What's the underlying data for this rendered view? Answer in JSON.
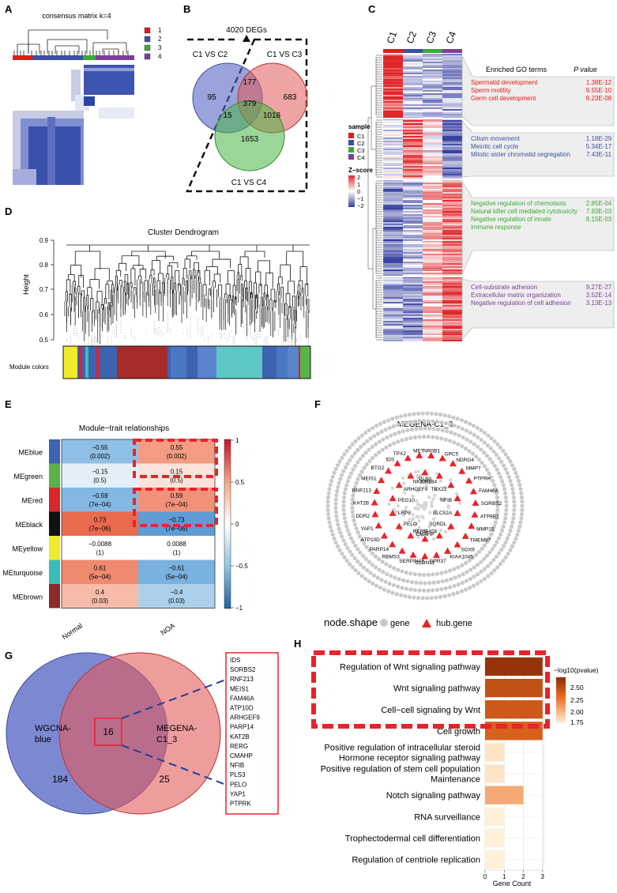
{
  "panels": {
    "A": "A",
    "B": "B",
    "C": "C",
    "D": "D",
    "E": "E",
    "F": "F",
    "G": "G",
    "H": "H"
  },
  "panelA": {
    "title": "consensus matrix k=4",
    "legend": [
      "1",
      "2",
      "3",
      "4"
    ]
  },
  "colors": {
    "c1": "#e31a1c",
    "c2": "#3c4fa3",
    "c3": "#3aaa35",
    "c4": "#7b3f99",
    "red_box": "#e8232a"
  },
  "panelB": {
    "top_label": "4020 DEGs",
    "set_labels": [
      "C1 VS C2",
      "C1 VS C3",
      "C1 VS C4"
    ],
    "regions": {
      "only_c2": "95",
      "c2_c3": "177",
      "only_c3": "683",
      "all": "379",
      "c2_c4": "15",
      "c3_c4": "1018",
      "only_c4": "1653"
    }
  },
  "panelC": {
    "columns": [
      "C1",
      "C2",
      "C3",
      "C4"
    ],
    "header": "Enriched GO terms",
    "pval_header": "P value",
    "legend_sample_title": "sample",
    "legend_samples": [
      "C1",
      "C2",
      "C3",
      "C4"
    ],
    "legend_z_title": "Z−score",
    "legend_z_ticks": [
      "2",
      "1",
      "0",
      "−1",
      "−2"
    ],
    "groups": [
      {
        "color": "#e31a1c",
        "terms": [
          {
            "term": "Spermatid development",
            "p": "1.38E-12"
          },
          {
            "term": "Sperm motility",
            "p": "9.55E-10"
          },
          {
            "term": "Germ cell development",
            "p": "9.23E-08"
          }
        ]
      },
      {
        "color": "#3c4fa3",
        "terms": [
          {
            "term": "Cilium movement",
            "p": "1.18E-29"
          },
          {
            "term": "Meiotic cell cycle",
            "p": "5.34E-17"
          },
          {
            "term": "Mitotic sister chromatid segregation",
            "p": "7.43E-11"
          }
        ]
      },
      {
        "color": "#3aaa35",
        "terms": [
          {
            "term": "Negative regulation of chemotaxis",
            "p": "2.85E-04"
          },
          {
            "term": "Natural killer cell mediated cytotoxicity",
            "p": "7.93E-03"
          },
          {
            "term": "Negative regulation of innate",
            "p": "8.15E-03"
          },
          {
            "term": "immune response",
            "p": ""
          }
        ]
      },
      {
        "color": "#7b3f99",
        "terms": [
          {
            "term": "Cell-substrate adhesion",
            "p": "9.27E-27"
          },
          {
            "term": "Extracellular matrix organization",
            "p": "3.52E-14"
          },
          {
            "term": "Negative regulation of cell adhesion",
            "p": "3.13E-13"
          }
        ]
      }
    ]
  },
  "panelD": {
    "title": "Cluster Dendrogram",
    "ylabel": "Height",
    "yticks": [
      "0.9",
      "0.8",
      "0.7",
      "0.6",
      "0.5"
    ],
    "module_label": "Module colors"
  },
  "panelE": {
    "title": "Module−trait relationships",
    "columns": [
      "Normal",
      "NOA"
    ],
    "scale_ticks": [
      "1",
      "0.5",
      "0",
      "−0.5",
      "−1"
    ],
    "rows": [
      {
        "name": "MEblue",
        "swatch": "#3e63b0",
        "cells": [
          {
            "v": "−0.55",
            "p": "(0.002)",
            "c": "#8fbfe5"
          },
          {
            "v": "0.55",
            "p": "(0.002)",
            "c": "#f39c82"
          }
        ]
      },
      {
        "name": "MEgreen",
        "swatch": "#5ab34a",
        "cells": [
          {
            "v": "−0.15",
            "p": "(0.5)",
            "c": "#e3eff8"
          },
          {
            "v": "0.15",
            "p": "(0.5)",
            "c": "#fbe3dc"
          }
        ]
      },
      {
        "name": "MEred",
        "swatch": "#d8262c",
        "cells": [
          {
            "v": "−0.59",
            "p": "(7e−04)",
            "c": "#84b7e1"
          },
          {
            "v": "0.59",
            "p": "(7e−04)",
            "c": "#f1917a"
          }
        ]
      },
      {
        "name": "MEblack",
        "swatch": "#111111",
        "cells": [
          {
            "v": "0.73",
            "p": "(7e−06)",
            "c": "#ea6a4d"
          },
          {
            "v": "−0.73",
            "p": "(7e−06)",
            "c": "#5f9bd5"
          }
        ]
      },
      {
        "name": "MEyellow",
        "swatch": "#f2ea2c",
        "cells": [
          {
            "v": "−0.0088",
            "p": "(1)",
            "c": "#ffffff"
          },
          {
            "v": "0.0088",
            "p": "(1)",
            "c": "#ffffff"
          }
        ]
      },
      {
        "name": "MEturquoise",
        "swatch": "#3bbcb8",
        "cells": [
          {
            "v": "0.61",
            "p": "(5e−04)",
            "c": "#ef8a70"
          },
          {
            "v": "−0.61",
            "p": "(5e−04)",
            "c": "#7ab1df"
          }
        ]
      },
      {
        "name": "MEbrown",
        "swatch": "#8b2a2a",
        "cells": [
          {
            "v": "0.4",
            "p": "(0.03)",
            "c": "#f6bca9"
          },
          {
            "v": "−0.4",
            "p": "(0.03)",
            "c": "#acd0ec"
          }
        ]
      }
    ]
  },
  "panelF": {
    "title": "MEGENA-C1_3",
    "legend_title": "node.shape",
    "legend_gene": "gene",
    "legend_hub": "hub.gene",
    "hubs": [
      "NR0B1",
      "GPC5",
      "NDRG4",
      "MMP7",
      "PTPRK",
      "FAM46A",
      "SORBS2",
      "ATP8B1",
      "MMP15",
      "TMEM97",
      "SOX9",
      "KIAA1045",
      "GPR37",
      "CLDN11",
      "SERPINA5",
      "RBMS3",
      "PARP14",
      "ATP10D",
      "YAP1",
      "DDR2",
      "KAT2B",
      "RNF213",
      "MEIS1",
      "BTG2",
      "IDS",
      "TPX2",
      "MET"
    ],
    "inner": [
      "PLS3",
      "ERBB4",
      "TBX22",
      "NFIB",
      "SLC52A",
      "SQRDL",
      "SHC4",
      "CMAHP",
      "RERG",
      "PELO",
      "LRP8",
      "PEG10",
      "ARHGEF9",
      "NKX3-1"
    ]
  },
  "panelG": {
    "left_label": [
      "WGCNA-",
      "blue"
    ],
    "right_label": [
      "MEGENA-",
      "C1_3"
    ],
    "left_only": "184",
    "overlap": "16",
    "right_only": "25",
    "genes": [
      "IDS",
      "SORBS2",
      "RNF213",
      "MEIS1",
      "FAM46A",
      "ATP10D",
      "ARHGEF9",
      "PARP14",
      "KAT2B",
      "RERG",
      "CMAHP",
      "NFIB",
      "PLS3",
      "PELO",
      "YAP1",
      "PTPRK"
    ]
  },
  "chart_data": {
    "type": "bar",
    "orientation": "horizontal",
    "categories": [
      "Regulation of Wnt signaling pathway",
      "Wnt signaling pathway",
      "Cell−cell signaling by Wnt",
      "Cell growth",
      "Positive regulation of intracellular steroid Hormone receptor signaling pathway",
      "Positive regulation of stem cell population Maintenance",
      "Notch signaling pathway",
      "RNA surveillance",
      "Trophectodermal cell differentiation",
      "Regulation of centriole replication"
    ],
    "category_lines": [
      [
        "Regulation of Wnt signaling pathway"
      ],
      [
        "Wnt signaling pathway"
      ],
      [
        "Cell−cell signaling by Wnt"
      ],
      [
        "Cell growth"
      ],
      [
        "Positive regulation of intracellular steroid",
        "Hormone receptor signaling pathway"
      ],
      [
        "Positive regulation of stem cell population",
        "Maintenance"
      ],
      [
        "Notch signaling pathway"
      ],
      [
        "RNA surveillance"
      ],
      [
        "Trophectodermal cell differentiation"
      ],
      [
        "Regulation of centriole replication"
      ]
    ],
    "values": [
      3,
      3,
      3,
      3,
      1,
      1,
      2,
      1,
      1,
      1
    ],
    "color_metric": [
      2.7,
      2.5,
      2.45,
      2.4,
      1.8,
      1.8,
      2.05,
      1.75,
      1.75,
      1.75
    ],
    "xlabel": "Gene Count",
    "xticks": [
      "0",
      "1",
      "2",
      "3"
    ],
    "xlim": [
      0,
      3.05
    ],
    "color_legend_title": "−log10(pvalue)",
    "color_legend_ticks": [
      "2.50",
      "2.25",
      "2.00",
      "1.75"
    ],
    "color_range": [
      1.75,
      2.75
    ]
  }
}
